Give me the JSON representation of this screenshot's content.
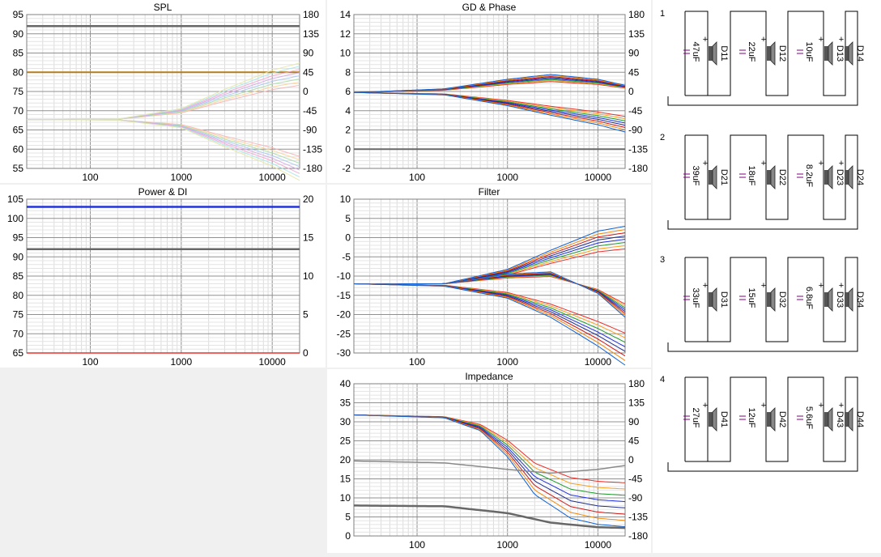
{
  "colors": {
    "red": "#e8302a",
    "orange": "#f6a021",
    "green": "#1e9a2c",
    "blue": "#2233dd",
    "navy": "#1f2f8f",
    "gray": "#8a8a8a",
    "dark": "#686868",
    "olive": "#b57f18"
  },
  "chart_data": [
    {
      "id": "spl",
      "type": "line",
      "title": "SPL",
      "xscale": "log",
      "xlim": [
        20,
        20000
      ],
      "xticks": [
        100,
        1000,
        10000
      ],
      "ylim": [
        55,
        95
      ],
      "yticks": [
        55,
        60,
        65,
        70,
        75,
        80,
        85,
        90,
        95
      ],
      "y2lim": [
        -180,
        180
      ],
      "y2ticks": [
        -180,
        -135,
        -90,
        -45,
        0,
        45,
        90,
        135,
        180
      ],
      "series": [
        {
          "color": "dark",
          "width": 2.5,
          "axis": "left",
          "x": [
            20,
            20000
          ],
          "y": [
            92,
            92
          ]
        },
        {
          "color": "olive",
          "width": 2,
          "axis": "left",
          "x": [
            20,
            20000
          ],
          "y": [
            80,
            80
          ]
        },
        {
          "color": "pastel",
          "axis": "left",
          "x": [
            20,
            200,
            1000,
            3000,
            10000,
            20000
          ],
          "y": [
            67.7,
            67.8,
            70,
            74,
            78,
            79.5
          ]
        },
        {
          "color": "pastel",
          "axis": "left",
          "x": [
            20,
            200,
            1000,
            3000,
            10000,
            20000
          ],
          "y": [
            67.7,
            67.6,
            66,
            62,
            58,
            55
          ]
        }
      ]
    },
    {
      "id": "gd",
      "type": "line",
      "title": "GD & Phase",
      "xscale": "log",
      "xlim": [
        20,
        20000
      ],
      "xticks": [
        100,
        1000,
        10000
      ],
      "ylim": [
        -2,
        14
      ],
      "yticks": [
        -2,
        0,
        2,
        4,
        6,
        8,
        10,
        12,
        14
      ],
      "y2lim": [
        -180,
        180
      ],
      "y2ticks": [
        -180,
        -135,
        -90,
        -45,
        0,
        45,
        90,
        135,
        180
      ],
      "series": [
        {
          "color": "dark",
          "width": 2,
          "axis": "left",
          "x": [
            20,
            20000
          ],
          "y": [
            0,
            0
          ]
        },
        {
          "color": "mix",
          "axis": "left",
          "x": [
            20,
            200,
            1000,
            3000,
            10000,
            20000
          ],
          "y": [
            5.9,
            6.2,
            7.0,
            7.4,
            7.0,
            6.5
          ]
        },
        {
          "color": "mix",
          "axis": "left",
          "x": [
            20,
            200,
            1000,
            3000,
            10000,
            20000
          ],
          "y": [
            5.9,
            5.7,
            4.8,
            4.0,
            3.2,
            2.6
          ]
        }
      ]
    },
    {
      "id": "power",
      "type": "line",
      "title": "Power & DI",
      "xscale": "log",
      "xlim": [
        20,
        20000
      ],
      "xticks": [
        100,
        1000,
        10000
      ],
      "ylim": [
        65,
        105
      ],
      "yticks": [
        65,
        70,
        75,
        80,
        85,
        90,
        95,
        100,
        105
      ],
      "y2lim": [
        0,
        20
      ],
      "y2ticks": [
        0,
        5,
        10,
        15,
        20
      ],
      "series": [
        {
          "color": "blue",
          "width": 2.5,
          "axis": "left",
          "x": [
            20,
            20000
          ],
          "y": [
            103,
            103
          ]
        },
        {
          "color": "dark",
          "width": 2.5,
          "axis": "left",
          "x": [
            20,
            20000
          ],
          "y": [
            92,
            92
          ]
        },
        {
          "color": "red",
          "width": 1.5,
          "axis": "left",
          "x": [
            20,
            20000
          ],
          "y": [
            65,
            65
          ]
        }
      ]
    },
    {
      "id": "filter",
      "type": "line",
      "title": "Filter",
      "xscale": "log",
      "xlim": [
        20,
        20000
      ],
      "xticks": [
        100,
        1000,
        10000
      ],
      "ylim": [
        -30,
        10
      ],
      "yticks": [
        -30,
        -25,
        -20,
        -15,
        -10,
        -5,
        0,
        5,
        10
      ],
      "series": [
        {
          "color": "mix",
          "axis": "left",
          "x": [
            20,
            200,
            1000,
            3000,
            10000,
            20000
          ],
          "y": [
            -12,
            -12,
            -9,
            -5,
            -1,
            0
          ]
        },
        {
          "color": "mix",
          "axis": "left",
          "x": [
            20,
            200,
            1000,
            3000,
            10000,
            20000
          ],
          "y": [
            -12,
            -12,
            -10,
            -9.5,
            -14,
            -19
          ]
        },
        {
          "color": "mix",
          "axis": "left",
          "x": [
            20,
            200,
            1000,
            3000,
            10000,
            20000
          ],
          "y": [
            -12,
            -12.5,
            -15,
            -19,
            -25,
            -29
          ]
        }
      ]
    },
    {
      "id": "imp",
      "type": "line",
      "title": "Impedance",
      "xscale": "log",
      "xlim": [
        20,
        20000
      ],
      "xticks": [
        100,
        1000,
        10000
      ],
      "ylim": [
        0,
        40
      ],
      "yticks": [
        0,
        5,
        10,
        15,
        20,
        25,
        30,
        35,
        40
      ],
      "y2lim": [
        -180,
        180
      ],
      "y2ticks": [
        -180,
        -135,
        -90,
        -45,
        0,
        45,
        90,
        135,
        180
      ],
      "series": [
        {
          "color": "mix",
          "axis": "left",
          "x": [
            20,
            200,
            500,
            1000,
            2000,
            5000,
            10000,
            20000
          ],
          "y": [
            31.8,
            31.2,
            28.5,
            23,
            15,
            10,
            8.7,
            8.2
          ]
        },
        {
          "color": "gray",
          "width": 1.5,
          "axis": "left",
          "x": [
            20,
            200,
            1000,
            3000,
            10000,
            20000
          ],
          "y": [
            19.7,
            19.2,
            17.5,
            16.5,
            17.5,
            18.5
          ]
        },
        {
          "color": "dark",
          "width": 2.5,
          "axis": "left",
          "x": [
            20,
            200,
            1000,
            3000,
            10000,
            20000
          ],
          "y": [
            8,
            7.8,
            6,
            3.5,
            2.3,
            2.1
          ]
        }
      ]
    }
  ],
  "schematic": {
    "rows": [
      {
        "label": "1",
        "caps": [
          "47uF",
          "22uF",
          "10uF"
        ],
        "drivers": [
          "D11",
          "D12",
          "D13",
          "D14"
        ]
      },
      {
        "label": "2",
        "caps": [
          "39uF",
          "18uF",
          "8.2uF"
        ],
        "drivers": [
          "D21",
          "D22",
          "D23",
          "D24"
        ]
      },
      {
        "label": "3",
        "caps": [
          "33uF",
          "15uF",
          "6.8uF"
        ],
        "drivers": [
          "D31",
          "D32",
          "D33",
          "D34"
        ]
      },
      {
        "label": "4",
        "caps": [
          "27uF",
          "12uF",
          "5.6uF"
        ],
        "drivers": [
          "D41",
          "D42",
          "D43",
          "D44"
        ]
      }
    ]
  }
}
